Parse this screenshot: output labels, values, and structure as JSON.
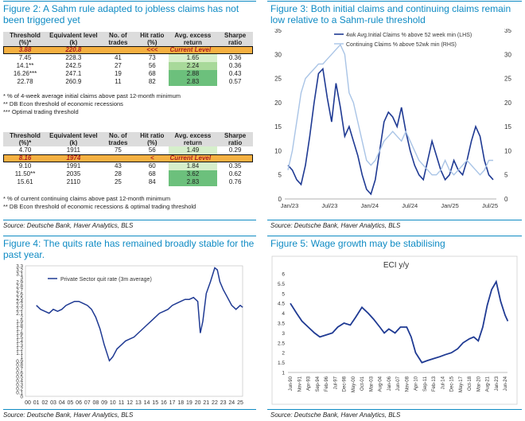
{
  "fig2": {
    "title": "Figure 2: A Sahm rule adapted to jobless claims has not been triggered yet",
    "table1": {
      "headers": [
        "Threshold (%)*",
        "Equivalent level (k)",
        "No. of trades",
        "Hit ratio (%)",
        "Avg. excess return",
        "Sharpe ratio"
      ],
      "current": {
        "threshold": "3.88",
        "level": "220.8",
        "marker": "<<<",
        "label": "Current Level"
      },
      "rows": [
        [
          "7.45",
          "228.3",
          "41",
          "73",
          "1.65",
          "0.36"
        ],
        [
          "14.1**",
          "242.5",
          "27",
          "56",
          "2.24",
          "0.36"
        ],
        [
          "16.26***",
          "247.1",
          "19",
          "68",
          "2.88",
          "0.43"
        ],
        [
          "22.78",
          "260.9",
          "11",
          "82",
          "2.83",
          "0.57"
        ]
      ],
      "notes": [
        "* % of 4-week average initial claims above past 12-month minimum",
        "** DB Econ threshold of economic recessions",
        "*** Optimal trading threshold"
      ]
    },
    "table2": {
      "headers": [
        "Threshold (%)*",
        "Equivalent level (k)",
        "No. of trades",
        "Hit ratio (%)",
        "Avg. excess return",
        "Sharpe ratio"
      ],
      "row_before": [
        "4.70",
        "1911",
        "75",
        "56",
        "1.49",
        "0.29"
      ],
      "current": {
        "threshold": "8.16",
        "level": "1974",
        "marker": "<",
        "label": "Current Level"
      },
      "rows": [
        [
          "9.10",
          "1991",
          "43",
          "60",
          "1.84",
          "0.35"
        ],
        [
          "11.50**",
          "2035",
          "28",
          "68",
          "3.62",
          "0.62"
        ],
        [
          "15.61",
          "2110",
          "25",
          "84",
          "2.83",
          "0.76"
        ]
      ],
      "notes": [
        "* % of current continuing claims above past 12-month minimum",
        "** DB Econ threshold of economic recessions & optimal trading threshold"
      ]
    },
    "source": "Source: Deutsche Bank, Haver Analytics, BLS"
  },
  "fig3": {
    "title": "Figure 3: Both initial claims and continuing claims remain low relative to a Sahm-rule threshold",
    "source": "Source: Deutsche Bank, Haver Analytics, BLS",
    "colors": {
      "initial": "#1f3a93",
      "continuing": "#a9c4e6"
    }
  },
  "fig4": {
    "title": "Figure 4: The quits rate has remained broadly stable for the past year.",
    "source": "Source: Deutsche Bank, Haver Analytics, BLS"
  },
  "fig5": {
    "title": "Figure 5: Wage growth may be stabilising",
    "source": "Source: Deutsche Bank, Haver Analytics, BLS"
  },
  "chart_data": [
    {
      "type": "line",
      "id": "fig3",
      "x_ticks": [
        "Jan/23",
        "Jul/23",
        "Jan/24",
        "Jul/24",
        "Jan/25",
        "Jul/25"
      ],
      "y_left": {
        "ticks": [
          0,
          5,
          10,
          15,
          20,
          25,
          30,
          35
        ],
        "lim": [
          0,
          35
        ]
      },
      "y_right": {
        "ticks": [
          0,
          5,
          10,
          15,
          20,
          25,
          30,
          35
        ],
        "lim": [
          0,
          35
        ]
      },
      "legend_position": "top-left",
      "series": [
        {
          "name": "4wk Avg.Initial Claims % above 52 week min (LHS)",
          "axis": "left",
          "values": [
            7,
            6,
            4,
            3,
            7,
            13,
            20,
            26,
            27,
            21,
            16,
            24,
            19,
            13,
            15,
            12,
            9,
            5,
            2,
            1,
            4,
            10,
            16,
            18,
            17,
            15,
            19,
            14,
            10,
            7,
            5,
            4,
            8,
            12,
            9,
            6,
            4,
            5,
            8,
            6,
            5,
            8,
            12,
            15,
            13,
            8,
            5,
            4
          ]
        },
        {
          "name": "Continuing Claims % above 52wk min (RHS)",
          "axis": "right",
          "values": [
            6,
            10,
            16,
            22,
            25,
            26,
            27,
            28,
            28,
            29,
            30,
            31,
            32,
            30,
            22,
            20,
            16,
            12,
            8,
            7,
            8,
            10,
            12,
            13,
            14,
            13,
            12,
            14,
            12,
            10,
            8,
            7,
            6,
            5,
            5,
            6,
            8,
            6,
            5,
            6,
            7,
            8,
            7,
            6,
            5,
            6,
            8,
            8
          ]
        }
      ]
    },
    {
      "type": "line",
      "id": "fig4",
      "x_ticks": [
        "00",
        "01",
        "02",
        "03",
        "04",
        "05",
        "06",
        "07",
        "08",
        "09",
        "10",
        "11",
        "12",
        "13",
        "14",
        "15",
        "16",
        "17",
        "18",
        "19",
        "20",
        "21",
        "22",
        "23",
        "24",
        "25"
      ],
      "y_ticks": [
        0,
        0.1,
        0.2,
        0.3,
        0.4,
        0.5,
        0.6,
        0.7,
        0.8,
        0.9,
        1,
        1.1,
        1.2,
        1.3,
        1.4,
        1.5,
        1.6,
        1.7,
        1.8,
        1.9,
        2,
        2.1,
        2.2,
        2.3,
        2.4,
        2.5,
        2.6,
        2.7,
        2.8,
        2.9,
        3,
        3.1,
        3.2,
        3.3
      ],
      "ylim": [
        0,
        3.3
      ],
      "legend_position": "top-left",
      "series": [
        {
          "name": "Private Sector quit rate (3m average)",
          "x": [
            1,
            1.5,
            2,
            2.5,
            3,
            3.5,
            4,
            4.5,
            5,
            5.5,
            6,
            6.5,
            7,
            7.5,
            8,
            8.5,
            9,
            9.3,
            9.6,
            10,
            10.5,
            11,
            11.5,
            12,
            12.5,
            13,
            13.5,
            14,
            14.5,
            15,
            15.5,
            16,
            16.5,
            17,
            17.5,
            18,
            18.5,
            19,
            19.5,
            20,
            20.3,
            20.6,
            21,
            21.5,
            22,
            22.3,
            22.6,
            23,
            23.5,
            24,
            24.5,
            25,
            25.3
          ],
          "values": [
            2.3,
            2.2,
            2.15,
            2.1,
            2.2,
            2.15,
            2.2,
            2.3,
            2.35,
            2.4,
            2.4,
            2.35,
            2.3,
            2.2,
            2.0,
            1.7,
            1.3,
            1.1,
            0.9,
            1.0,
            1.2,
            1.3,
            1.4,
            1.45,
            1.5,
            1.6,
            1.7,
            1.8,
            1.9,
            2.0,
            2.1,
            2.15,
            2.2,
            2.3,
            2.35,
            2.4,
            2.45,
            2.45,
            2.5,
            2.4,
            1.6,
            1.9,
            2.6,
            2.9,
            3.25,
            3.2,
            2.9,
            2.7,
            2.5,
            2.3,
            2.2,
            2.3,
            2.25
          ]
        }
      ]
    },
    {
      "type": "line",
      "id": "fig5",
      "title": "ECI y/y",
      "x_ticks": [
        "Jun-90",
        "Nov-91",
        "Apr-93",
        "Sep-94",
        "Feb-96",
        "Jul-97",
        "Dec-98",
        "May-00",
        "Oct-01",
        "Mar-03",
        "Aug-04",
        "Jan-06",
        "Jun-07",
        "Nov-08",
        "Apr-10",
        "Sep-11",
        "Feb-13",
        "Jul-14",
        "Dec-15",
        "May-17",
        "Oct-18",
        "Mar-20",
        "Aug-21",
        "Jan-23",
        "Jun-24"
      ],
      "y_ticks": [
        1,
        1.5,
        2,
        2.5,
        3,
        3.5,
        4,
        4.5,
        5,
        5.5,
        6
      ],
      "ylim": [
        1,
        6
      ],
      "x": [
        0,
        0.7,
        1.3,
        2,
        2.7,
        3.3,
        4,
        4.7,
        5.3,
        6,
        6.7,
        7.3,
        8,
        8.7,
        9.3,
        10,
        10.5,
        11,
        11.7,
        12.3,
        13,
        13.5,
        14,
        14.7,
        15.3,
        16,
        16.7,
        17.3,
        18,
        18.7,
        19.3,
        20,
        20.5,
        21,
        21.5,
        22,
        22.5,
        23,
        23.5,
        24,
        24.3
      ],
      "values": [
        4.5,
        4.0,
        3.6,
        3.3,
        3.0,
        2.8,
        2.9,
        3.0,
        3.3,
        3.5,
        3.4,
        3.8,
        4.3,
        4.0,
        3.7,
        3.3,
        3.0,
        3.2,
        3.0,
        3.3,
        3.3,
        2.8,
        2.0,
        1.5,
        1.6,
        1.7,
        1.8,
        1.9,
        2.0,
        2.2,
        2.5,
        2.7,
        2.8,
        2.6,
        3.3,
        4.4,
        5.2,
        5.6,
        4.6,
        3.9,
        3.6
      ]
    }
  ]
}
